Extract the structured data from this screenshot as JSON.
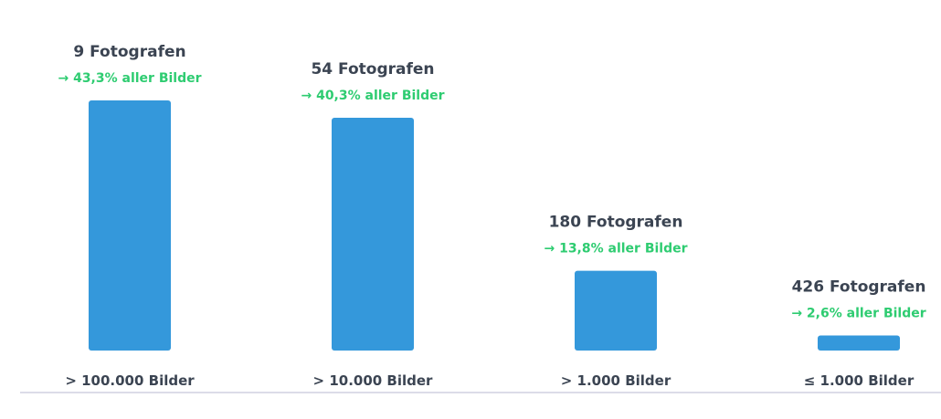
{
  "chart_data": {
    "type": "bar",
    "categories": [
      "> 100.000 Bilder",
      "> 10.000 Bilder",
      "> 1.000 Bilder",
      "≤ 1.000 Bilder"
    ],
    "values": [
      43.3,
      40.3,
      13.8,
      2.6
    ],
    "count_labels": [
      "9 Fotografen",
      "54 Fotografen",
      "180 Fotografen",
      "426 Fotografen"
    ],
    "share_labels": [
      "→ 43,3% aller Bilder",
      "→ 40,3% aller Bilder",
      "→ 13,8% aller Bilder",
      "→ 2,6% aller Bilder"
    ],
    "ylim": [
      0,
      43.3
    ],
    "grid": false,
    "colors": {
      "bar": "#3498db",
      "share_text": "#2ecc71",
      "count_text": "#3b4452",
      "category_text": "#3b4452",
      "baseline": "#dcdce8"
    }
  }
}
